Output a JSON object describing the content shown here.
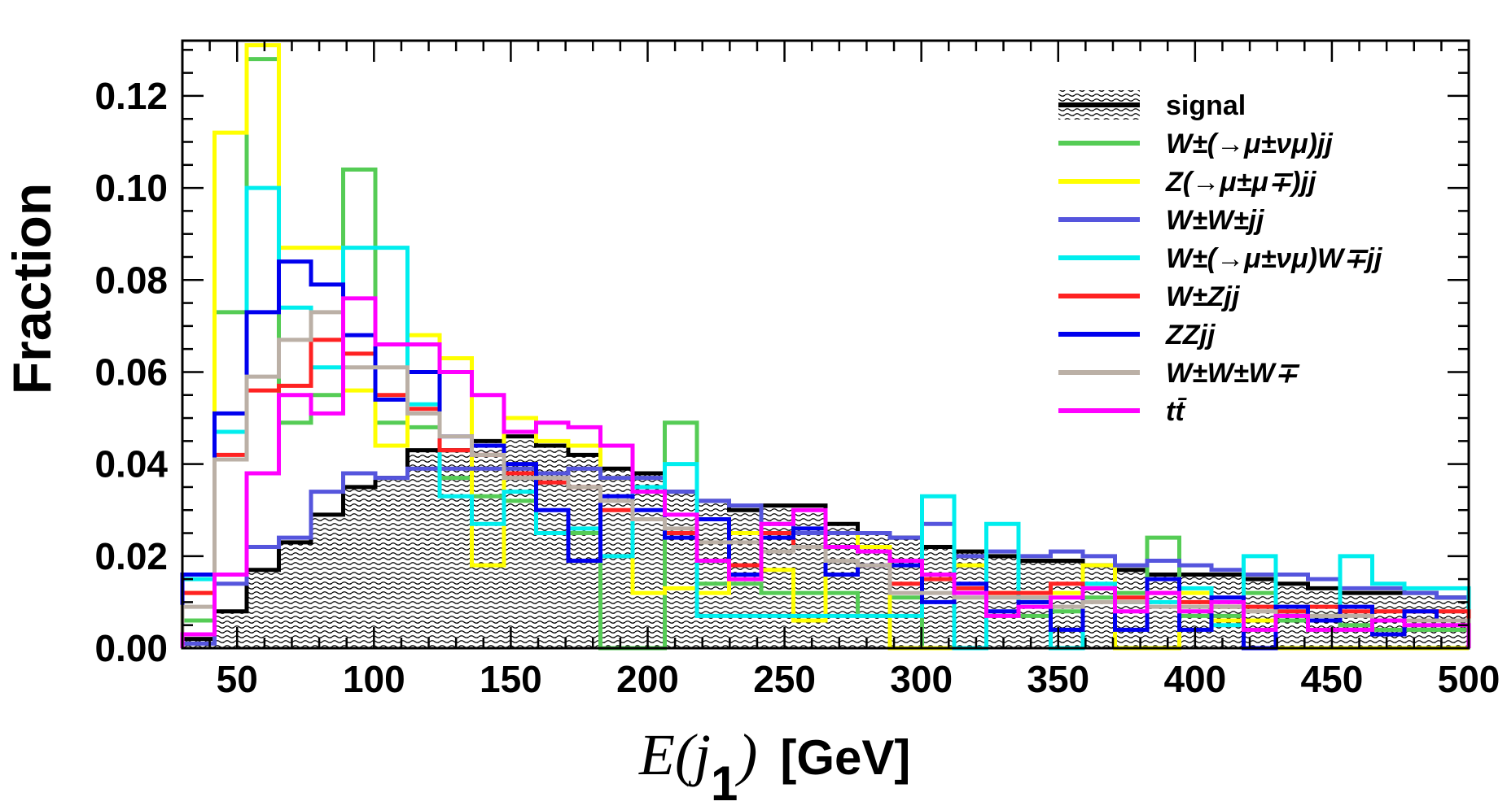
{
  "chart_data": {
    "type": "step-histogram",
    "xlabel": {
      "prefix": "E(",
      "var": "j",
      "sub": "1",
      "suffix": ")",
      "units": "[GeV]"
    },
    "ylabel": "Fraction",
    "xlim": [
      30,
      500
    ],
    "ylim": [
      0,
      0.132
    ],
    "x_ticks": [
      50,
      100,
      150,
      200,
      250,
      300,
      350,
      400,
      450,
      500
    ],
    "x_tick_labels": [
      "50",
      "100",
      "150",
      "200",
      "250",
      "300",
      "350",
      "400",
      "450",
      "500"
    ],
    "y_ticks": [
      0.0,
      0.02,
      0.04,
      0.06,
      0.08,
      0.1,
      0.12
    ],
    "y_tick_labels": [
      "0.00",
      "0.02",
      "0.04",
      "0.06",
      "0.08",
      "0.10",
      "0.12"
    ],
    "bin_edges": [
      30,
      41.75,
      53.5,
      65.25,
      77,
      88.75,
      100.5,
      112.25,
      124,
      135.75,
      147.5,
      159.25,
      171,
      182.75,
      194.5,
      206.25,
      218,
      229.75,
      241.5,
      253.25,
      265,
      276.75,
      288.5,
      300.25,
      312,
      323.75,
      335.5,
      347.25,
      359,
      370.75,
      382.5,
      394.25,
      406,
      417.75,
      429.5,
      441.25,
      453,
      464.75,
      476.5,
      488.25,
      500
    ],
    "legend_position": "top-right",
    "series": [
      {
        "name": "signal",
        "label": "signal",
        "color": "#000000",
        "hatched": true,
        "values": [
          0.002,
          0.008,
          0.017,
          0.023,
          0.029,
          0.035,
          0.037,
          0.043,
          0.043,
          0.045,
          0.046,
          0.044,
          0.042,
          0.039,
          0.038,
          0.034,
          0.032,
          0.03,
          0.031,
          0.031,
          0.027,
          0.025,
          0.024,
          0.022,
          0.021,
          0.02,
          0.019,
          0.019,
          0.018,
          0.017,
          0.016,
          0.016,
          0.016,
          0.015,
          0.014,
          0.013,
          0.012,
          0.012,
          0.012,
          0.011
        ]
      },
      {
        "name": "w-munu-jj",
        "label": "W±(→μ±νμ)jj",
        "color": "#55cc55",
        "hatched": false,
        "values": [
          0.006,
          0.073,
          0.128,
          0.049,
          0.055,
          0.104,
          0.049,
          0.048,
          0.037,
          0.033,
          0.032,
          0.025,
          0.025,
          0.0,
          0.0,
          0.049,
          0.014,
          0.014,
          0.012,
          0.012,
          0.012,
          0.007,
          0.011,
          0.0,
          0.0,
          0.012,
          0.007,
          0.008,
          0.011,
          0.012,
          0.024,
          0.007,
          0.007,
          0.012,
          0.006,
          0.007,
          0.005,
          0.004,
          0.004,
          0.004
        ]
      },
      {
        "name": "z-mumu-jj",
        "label": "Z(→μ±μ∓)jj",
        "color": "#ffff00",
        "hatched": false,
        "values": [
          0.012,
          0.112,
          0.131,
          0.087,
          0.087,
          0.056,
          0.044,
          0.068,
          0.063,
          0.018,
          0.05,
          0.045,
          0.044,
          0.037,
          0.012,
          0.013,
          0.012,
          0.025,
          0.017,
          0.006,
          0.025,
          0.022,
          0.0,
          0.0,
          0.018,
          0.012,
          0.012,
          0.012,
          0.018,
          0.0,
          0.0,
          0.012,
          0.006,
          0.006,
          0.0,
          0.0,
          0.0,
          0.0,
          0.0,
          0.0
        ]
      },
      {
        "name": "wpwp-jj",
        "label": "W±W±jj",
        "color": "#5555dd",
        "hatched": false,
        "values": [
          0.001,
          0.014,
          0.022,
          0.024,
          0.034,
          0.038,
          0.037,
          0.039,
          0.039,
          0.039,
          0.039,
          0.038,
          0.039,
          0.037,
          0.037,
          0.034,
          0.032,
          0.031,
          0.027,
          0.025,
          0.025,
          0.025,
          0.024,
          0.027,
          0.02,
          0.021,
          0.02,
          0.021,
          0.02,
          0.018,
          0.019,
          0.018,
          0.017,
          0.016,
          0.016,
          0.015,
          0.013,
          0.013,
          0.012,
          0.011
        ]
      },
      {
        "name": "w-munu-w-jj",
        "label": "W±(→μ±νμ)W∓jj",
        "color": "#00eeee",
        "hatched": false,
        "values": [
          0.015,
          0.047,
          0.1,
          0.074,
          0.061,
          0.087,
          0.087,
          0.053,
          0.033,
          0.027,
          0.034,
          0.025,
          0.026,
          0.02,
          0.035,
          0.04,
          0.007,
          0.007,
          0.007,
          0.007,
          0.007,
          0.007,
          0.007,
          0.033,
          0.0,
          0.027,
          0.01,
          0.0,
          0.014,
          0.01,
          0.01,
          0.013,
          0.005,
          0.02,
          0.008,
          0.006,
          0.02,
          0.014,
          0.013,
          0.013
        ]
      },
      {
        "name": "wz-jj",
        "label": "W±Zjj",
        "color": "#ff2222",
        "hatched": false,
        "values": [
          0.012,
          0.042,
          0.056,
          0.057,
          0.067,
          0.064,
          0.055,
          0.052,
          0.043,
          0.042,
          0.038,
          0.036,
          0.035,
          0.03,
          0.028,
          0.025,
          0.028,
          0.018,
          0.025,
          0.022,
          0.019,
          0.018,
          0.014,
          0.015,
          0.013,
          0.012,
          0.012,
          0.014,
          0.013,
          0.011,
          0.012,
          0.01,
          0.009,
          0.009,
          0.008,
          0.009,
          0.008,
          0.008,
          0.008,
          0.008
        ]
      },
      {
        "name": "zz-jj",
        "label": "ZZjj",
        "color": "#0000ee",
        "hatched": false,
        "values": [
          0.016,
          0.051,
          0.073,
          0.084,
          0.079,
          0.068,
          0.054,
          0.06,
          0.046,
          0.044,
          0.04,
          0.03,
          0.019,
          0.033,
          0.03,
          0.024,
          0.028,
          0.016,
          0.024,
          0.026,
          0.016,
          0.018,
          0.018,
          0.01,
          0.014,
          0.008,
          0.01,
          0.004,
          0.013,
          0.004,
          0.015,
          0.004,
          0.011,
          0.0,
          0.009,
          0.006,
          0.009,
          0.003,
          0.008,
          0.006
        ]
      },
      {
        "name": "www",
        "label": "W±W±W∓",
        "color": "#bbb0a6",
        "hatched": false,
        "values": [
          0.009,
          0.041,
          0.059,
          0.067,
          0.073,
          0.061,
          0.061,
          0.051,
          0.046,
          0.042,
          0.037,
          0.037,
          0.035,
          0.032,
          0.028,
          0.026,
          0.023,
          0.023,
          0.021,
          0.022,
          0.019,
          0.018,
          0.012,
          0.012,
          0.011,
          0.011,
          0.011,
          0.009,
          0.01,
          0.01,
          0.009,
          0.009,
          0.009,
          0.008,
          0.007,
          0.007,
          0.007,
          0.006,
          0.006,
          0.006
        ]
      },
      {
        "name": "ttbar",
        "label": "tt̄",
        "color": "#ff00ff",
        "hatched": false,
        "values": [
          0.003,
          0.016,
          0.038,
          0.055,
          0.051,
          0.076,
          0.066,
          0.066,
          0.06,
          0.055,
          0.047,
          0.049,
          0.048,
          0.044,
          0.034,
          0.029,
          0.019,
          0.015,
          0.027,
          0.03,
          0.022,
          0.021,
          0.019,
          0.016,
          0.012,
          0.007,
          0.009,
          0.011,
          0.013,
          0.008,
          0.012,
          0.008,
          0.01,
          0.004,
          0.007,
          0.004,
          0.004,
          0.006,
          0.005,
          0.005
        ]
      }
    ]
  }
}
